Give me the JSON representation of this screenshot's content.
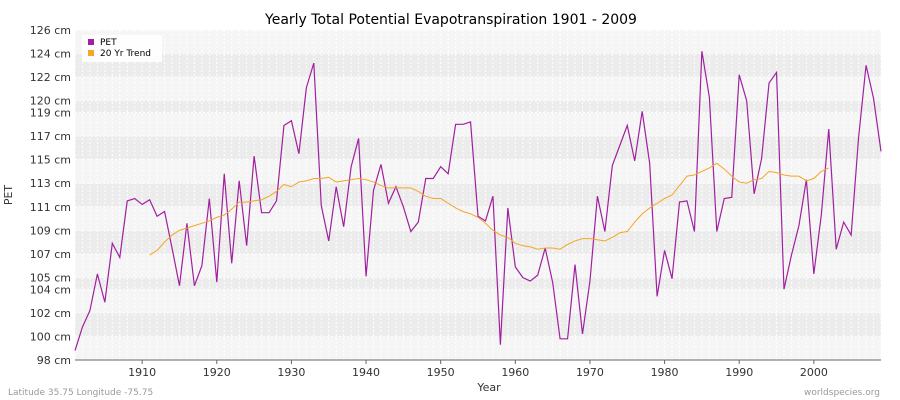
{
  "chart_data": {
    "type": "line",
    "title": "Yearly Total Potential Evapotranspiration 1901 - 2009",
    "xlabel": "Year",
    "ylabel": "PET",
    "xlim": [
      1901,
      2009
    ],
    "ylim": [
      98,
      126
    ],
    "x_ticks": [
      1910,
      1920,
      1930,
      1940,
      1950,
      1960,
      1970,
      1980,
      1990,
      2000
    ],
    "y_ticks": [
      98,
      100,
      102,
      104,
      105,
      107,
      109,
      111,
      113,
      115,
      117,
      119,
      120,
      122,
      124,
      126
    ],
    "y_tick_labels": [
      "98 cm",
      "100 cm",
      "102 cm",
      "104 cm",
      "105 cm",
      "107 cm",
      "109 cm",
      "111 cm",
      "113 cm",
      "115 cm",
      "117 cm",
      "119 cm",
      "120 cm",
      "122 cm",
      "124 cm",
      "126 cm"
    ],
    "grid": true,
    "legend_position": "top-left",
    "series": [
      {
        "name": "PET",
        "color": "#a020a0",
        "x_start": 1901,
        "values": [
          98.8,
          100.8,
          102.2,
          105.3,
          102.9,
          107.9,
          106.7,
          111.5,
          111.7,
          111.2,
          111.6,
          110.2,
          110.6,
          107.5,
          104.3,
          109.6,
          104.3,
          106.0,
          111.7,
          104.6,
          113.8,
          106.2,
          113.2,
          107.7,
          115.3,
          110.5,
          110.5,
          111.5,
          117.9,
          118.3,
          115.5,
          121.1,
          123.2,
          111.1,
          108.1,
          112.7,
          109.3,
          114.4,
          116.8,
          105.1,
          112.4,
          114.6,
          111.3,
          112.7,
          111.0,
          108.9,
          109.7,
          113.4,
          113.4,
          114.4,
          113.8,
          118.0,
          118.0,
          118.2,
          110.2,
          109.8,
          111.9,
          99.3,
          110.9,
          105.9,
          105.0,
          104.7,
          105.2,
          107.5,
          104.6,
          99.8,
          99.8,
          106.1,
          100.2,
          104.7,
          111.9,
          108.9,
          114.5,
          116.2,
          117.9,
          114.9,
          119.1,
          114.7,
          103.4,
          107.3,
          104.9,
          111.4,
          111.5,
          108.9,
          124.2,
          120.3,
          108.9,
          111.7,
          111.8,
          122.2,
          120.0,
          112.1,
          115.1,
          121.5,
          122.4,
          104.0,
          106.9,
          109.4,
          113.3,
          105.3,
          110.3,
          117.6,
          107.4,
          109.7,
          108.6,
          116.9,
          123.0,
          120.2,
          115.7
        ]
      },
      {
        "name": "20 Yr Trend",
        "color": "#f5a623",
        "x_start": 1911,
        "values": [
          106.9,
          107.3,
          108.0,
          108.6,
          109.0,
          109.2,
          109.4,
          109.6,
          109.8,
          110.1,
          110.3,
          110.8,
          111.4,
          111.4,
          111.5,
          111.6,
          111.9,
          112.3,
          112.9,
          112.7,
          113.1,
          113.2,
          113.4,
          113.4,
          113.5,
          113.1,
          113.2,
          113.3,
          113.4,
          113.3,
          113.1,
          112.8,
          112.6,
          112.6,
          112.6,
          112.6,
          112.3,
          111.9,
          111.7,
          111.7,
          111.3,
          110.9,
          110.6,
          110.4,
          110.1,
          109.6,
          109.0,
          108.6,
          108.4,
          107.9,
          107.7,
          107.6,
          107.4,
          107.5,
          107.5,
          107.4,
          107.8,
          108.1,
          108.3,
          108.3,
          108.2,
          108.1,
          108.4,
          108.8,
          108.9,
          109.7,
          110.4,
          110.9,
          111.3,
          111.7,
          112.0,
          112.8,
          113.6,
          113.7,
          114.0,
          114.3,
          114.7,
          114.2,
          113.6,
          113.1,
          113.0,
          113.3,
          113.4,
          114.0,
          113.9,
          113.7,
          113.6,
          113.6,
          113.2,
          113.4,
          114.0,
          114.3
        ]
      }
    ]
  },
  "footer": {
    "location": "Latitude 35.75 Longitude -75.75",
    "source": "worldspecies.org"
  }
}
